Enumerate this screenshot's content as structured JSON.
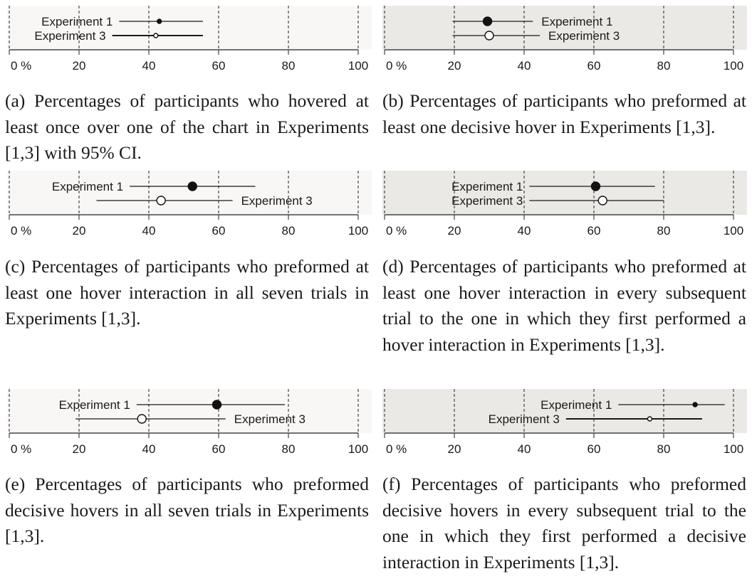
{
  "chart_data": [
    {
      "type": "dot-interval",
      "id": "a",
      "background": "#f8f7f5",
      "ticks": [
        "0 %",
        "20",
        "40",
        "60",
        "80",
        "100"
      ],
      "xlim": [
        0,
        100
      ],
      "caption": "(a) Percentages of participants who hovered at least once over one of the chart in Experiments [1,3] with 95% CI.",
      "series": [
        {
          "name": "Experiment 1",
          "value": 43,
          "ci": [
            31.5,
            55.5
          ],
          "marker": "filled",
          "size": "small",
          "label_side": "left"
        },
        {
          "name": "Experiment 3",
          "value": 42,
          "ci": [
            29.5,
            55.5
          ],
          "marker": "open",
          "size": "small",
          "label_side": "left"
        }
      ]
    },
    {
      "type": "dot-interval",
      "id": "b",
      "background": "#ebe9e5",
      "ticks": [
        "0 %",
        "20",
        "40",
        "60",
        "80",
        "100"
      ],
      "xlim": [
        0,
        100
      ],
      "caption": "(b) Percentages of participants who preformed at least one decisive hover in Experiments [1,3].",
      "series": [
        {
          "name": "Experiment 1",
          "value": 29.5,
          "ci": [
            19.5,
            42.5
          ],
          "marker": "filled",
          "size": "large",
          "label_side": "right"
        },
        {
          "name": "Experiment 3",
          "value": 30,
          "ci": [
            19.5,
            44.5
          ],
          "marker": "open",
          "size": "large",
          "label_side": "right"
        }
      ]
    },
    {
      "type": "dot-interval",
      "id": "c",
      "background": "#f8f7f5",
      "ticks": [
        "0 %",
        "20",
        "40",
        "60",
        "80",
        "100"
      ],
      "xlim": [
        0,
        100
      ],
      "caption": "(c) Percentages of participants who preformed at least one hover interaction in all seven trials in Experiments [1,3].",
      "series": [
        {
          "name": "Experiment 1",
          "value": 52.5,
          "ci": [
            34.5,
            70.5
          ],
          "marker": "filled",
          "size": "large",
          "label_side": "left"
        },
        {
          "name": "Experiment 3",
          "value": 43.5,
          "ci": [
            25,
            64
          ],
          "marker": "open",
          "size": "large",
          "label_side": "right"
        }
      ]
    },
    {
      "type": "dot-interval",
      "id": "d",
      "background": "#ebe9e5",
      "ticks": [
        "0 %",
        "20",
        "40",
        "60",
        "80",
        "100"
      ],
      "xlim": [
        0,
        100
      ],
      "caption": "(d) Percentages of participants who preformed at least one hover interaction in every subsequent trial to the one in which they first performed a hover interaction in Experiments [1,3].",
      "series": [
        {
          "name": "Experiment 1",
          "value": 60.5,
          "ci": [
            41.5,
            77.5
          ],
          "marker": "filled",
          "size": "large",
          "label_side": "left"
        },
        {
          "name": "Experiment 3",
          "value": 62.5,
          "ci": [
            41.5,
            80
          ],
          "marker": "open",
          "size": "large",
          "label_side": "left"
        }
      ]
    },
    {
      "type": "dot-interval",
      "id": "e",
      "background": "#f8f7f5",
      "ticks": [
        "0 %",
        "20",
        "40",
        "60",
        "80",
        "100"
      ],
      "xlim": [
        0,
        100
      ],
      "caption": "(e) Percentages of participants who preformed decisive hovers in all seven trials in Experiments [1,3].",
      "series": [
        {
          "name": "Experiment 1",
          "value": 59.5,
          "ci": [
            36.5,
            79
          ],
          "marker": "filled",
          "size": "large",
          "label_side": "left"
        },
        {
          "name": "Experiment 3",
          "value": 38,
          "ci": [
            19,
            62
          ],
          "marker": "open",
          "size": "large",
          "label_side": "right"
        }
      ]
    },
    {
      "type": "dot-interval",
      "id": "f",
      "background": "#ebe9e5",
      "ticks": [
        "0 %",
        "20",
        "40",
        "60",
        "80",
        "100"
      ],
      "xlim": [
        0,
        100
      ],
      "caption": "(f) Percentages of participants who preformed decisive hovers in every subsequent trial to the one in which they first performed a decisive interaction in Experiments [1,3].",
      "series": [
        {
          "name": "Experiment 1",
          "value": 89,
          "ci": [
            67,
            97.5
          ],
          "marker": "filled",
          "size": "small",
          "label_side": "left"
        },
        {
          "name": "Experiment 3",
          "value": 76,
          "ci": [
            52,
            91
          ],
          "marker": "open",
          "size": "small",
          "label_side": "left"
        }
      ]
    }
  ]
}
